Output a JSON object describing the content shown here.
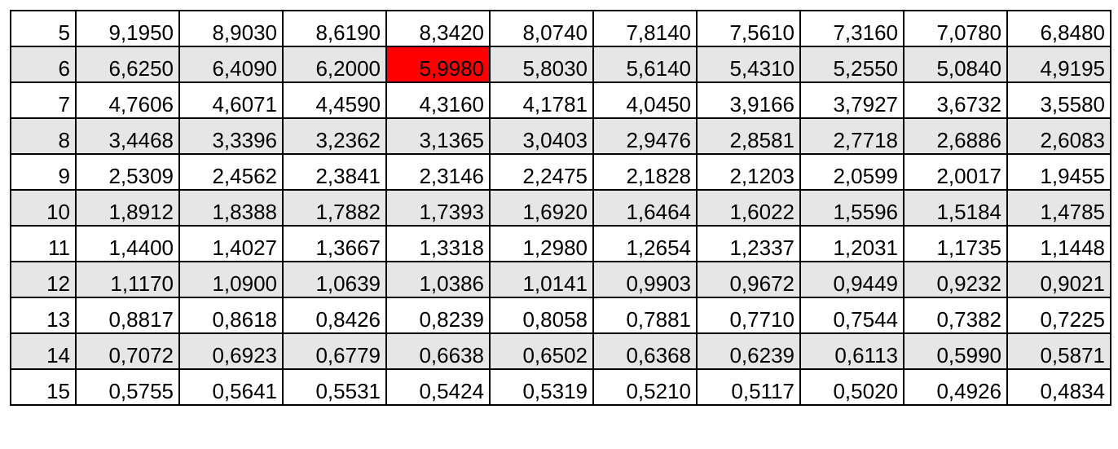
{
  "table": {
    "highlight": {
      "row": 1,
      "col": 4,
      "color": "#ff0000"
    },
    "shade_color": "#e6e6e6",
    "rows": [
      [
        "5",
        "9,1950",
        "8,9030",
        "8,6190",
        "8,3420",
        "8,0740",
        "7,8140",
        "7,5610",
        "7,3160",
        "7,0780",
        "6,8480"
      ],
      [
        "6",
        "6,6250",
        "6,4090",
        "6,2000",
        "5,9980",
        "5,8030",
        "5,6140",
        "5,4310",
        "5,2550",
        "5,0840",
        "4,9195"
      ],
      [
        "7",
        "4,7606",
        "4,6071",
        "4,4590",
        "4,3160",
        "4,1781",
        "4,0450",
        "3,9166",
        "3,7927",
        "3,6732",
        "3,5580"
      ],
      [
        "8",
        "3,4468",
        "3,3396",
        "3,2362",
        "3,1365",
        "3,0403",
        "2,9476",
        "2,8581",
        "2,7718",
        "2,6886",
        "2,6083"
      ],
      [
        "9",
        "2,5309",
        "2,4562",
        "2,3841",
        "2,3146",
        "2,2475",
        "2,1828",
        "2,1203",
        "2,0599",
        "2,0017",
        "1,9455"
      ],
      [
        "10",
        "1,8912",
        "1,8388",
        "1,7882",
        "1,7393",
        "1,6920",
        "1,6464",
        "1,6022",
        "1,5596",
        "1,5184",
        "1,4785"
      ],
      [
        "11",
        "1,4400",
        "1,4027",
        "1,3667",
        "1,3318",
        "1,2980",
        "1,2654",
        "1,2337",
        "1,2031",
        "1,1735",
        "1,1448"
      ],
      [
        "12",
        "1,1170",
        "1,0900",
        "1,0639",
        "1,0386",
        "1,0141",
        "0,9903",
        "0,9672",
        "0,9449",
        "0,9232",
        "0,9021"
      ],
      [
        "13",
        "0,8817",
        "0,8618",
        "0,8426",
        "0,8239",
        "0,8058",
        "0,7881",
        "0,7710",
        "0,7544",
        "0,7382",
        "0,7225"
      ],
      [
        "14",
        "0,7072",
        "0,6923",
        "0,6779",
        "0,6638",
        "0,6502",
        "0,6368",
        "0,6239",
        "0,6113",
        "0,5990",
        "0,5871"
      ],
      [
        "15",
        "0,5755",
        "0,5641",
        "0,5531",
        "0,5424",
        "0,5319",
        "0,5210",
        "0,5117",
        "0,5020",
        "0,4926",
        "0,4834"
      ]
    ]
  }
}
